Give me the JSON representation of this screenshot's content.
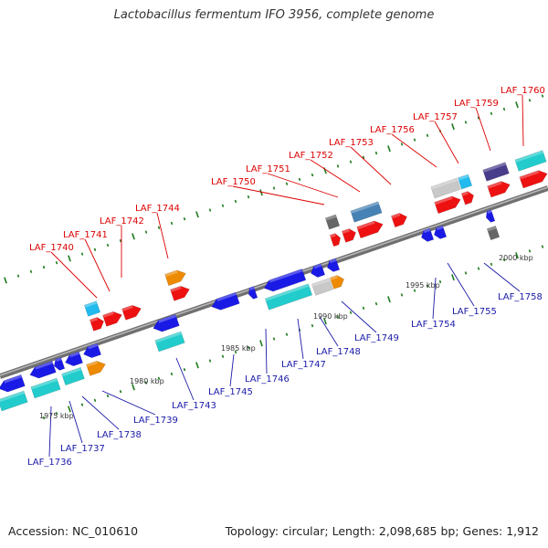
{
  "title": "Lactobacillus fermentum IFO 3956, complete genome",
  "footer": {
    "accession": "Accession: NC_010610",
    "topology": "Topology: circular; Length: 2,098,685 bp; Genes: 1,912"
  },
  "colors": {
    "backbone": "#888888",
    "top_label": "#dd0000",
    "bottom_label": "#1a1aa8",
    "tick": "#1d7a1d",
    "red_gene": "#ee1111",
    "blue_gene": "#1a1ae6",
    "cyan_gene": "#22cccc",
    "orange_gene": "#ee8a00",
    "gray_gene": "#c8c8c8",
    "dark_gray_gene": "#666666",
    "light_blue_gene": "#22bbee",
    "steel_blue_gene": "#4682b4",
    "slate_gene": "#483d8b"
  },
  "scale_labels": [
    "1975 kbp",
    "1980 kbp",
    "1985 kbp",
    "1990 kbp",
    "1995 kbp",
    "2000 kbp"
  ],
  "top_labels": [
    "LAF_1740",
    "LAF_1741",
    "LAF_1742",
    "LAF_1744",
    "LAF_1750",
    "LAF_1751",
    "LAF_1752",
    "LAF_1753",
    "LAF_1756",
    "LAF_1757",
    "LAF_1759",
    "LAF_1760"
  ],
  "bottom_labels": [
    "LAF_1736",
    "LAF_1737",
    "LAF_1738",
    "LAF_1739",
    "LAF_1743",
    "LAF_1745",
    "LAF_1746",
    "LAF_1747",
    "LAF_1748",
    "LAF_1749",
    "LAF_1754",
    "LAF_1755",
    "LAF_1758"
  ]
}
